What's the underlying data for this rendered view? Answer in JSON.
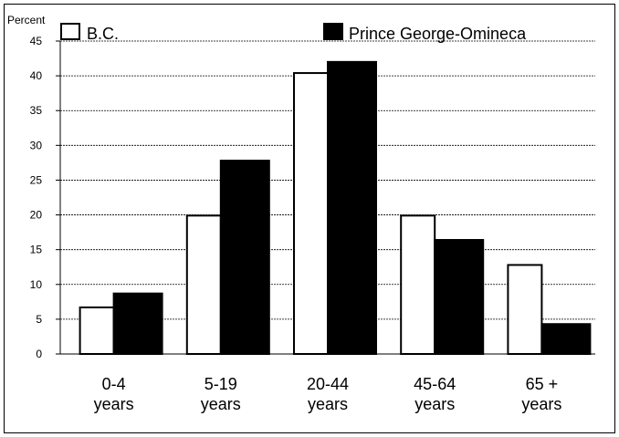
{
  "chart_data": {
    "type": "bar",
    "ylabel": "Percent",
    "categories": [
      [
        "0-4",
        "years"
      ],
      [
        "5-19",
        "years"
      ],
      [
        "20-44",
        "years"
      ],
      [
        "45-64",
        "years"
      ],
      [
        "65 +",
        "years"
      ]
    ],
    "series": [
      {
        "name": "B.C.",
        "values": [
          6.7,
          19.9,
          40.4,
          19.9,
          12.8
        ],
        "fill": "#ffffff"
      },
      {
        "name": "Prince George-Omineca",
        "values": [
          8.7,
          27.8,
          42.0,
          16.4,
          4.3
        ],
        "fill": "#000000"
      }
    ],
    "ylim": [
      0,
      45
    ],
    "yticks": [
      0,
      5,
      10,
      15,
      20,
      25,
      30,
      35,
      40,
      45
    ],
    "grid": "horizontal dashed",
    "legend": "top"
  }
}
